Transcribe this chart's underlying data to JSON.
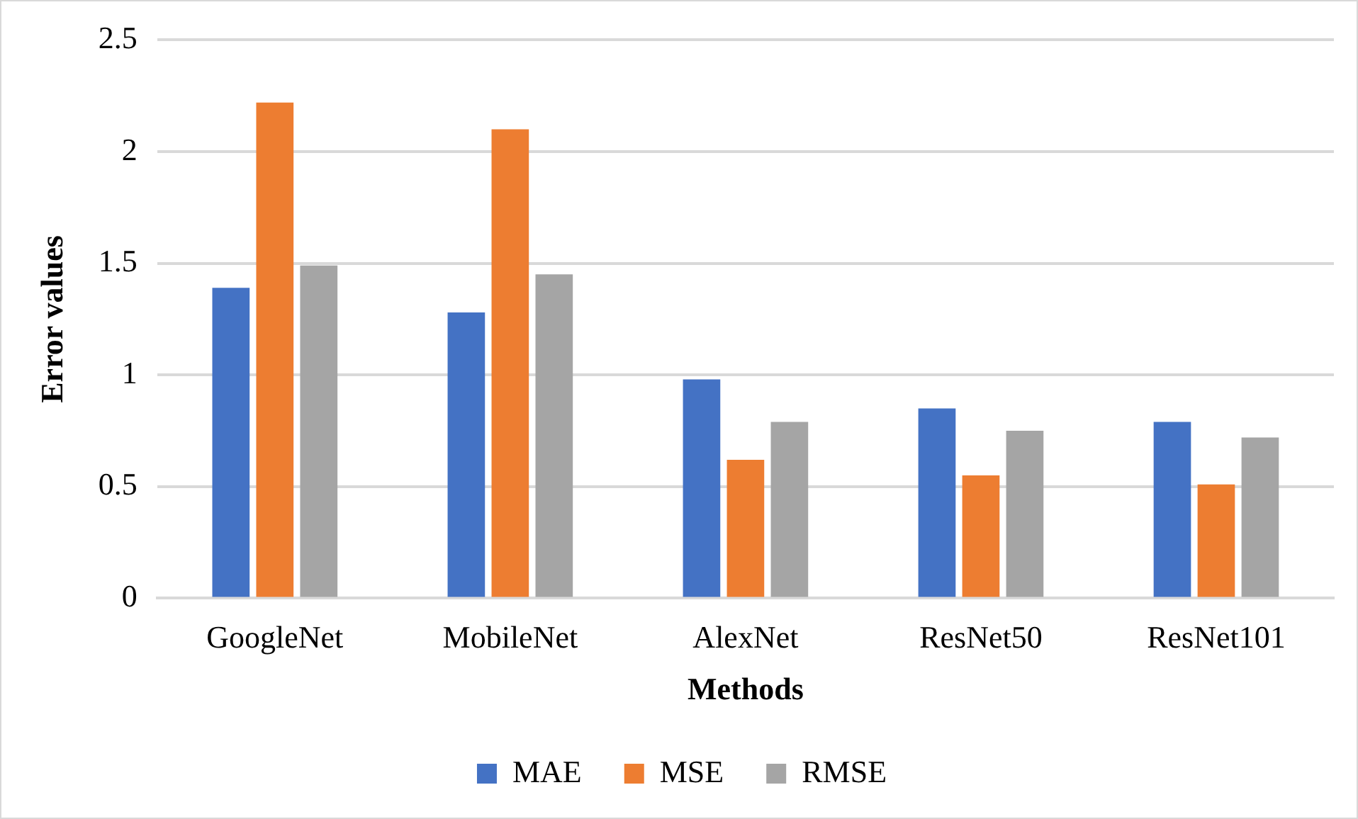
{
  "chart_data": {
    "type": "bar",
    "xlabel": "Methods",
    "ylabel": "Error values",
    "categories": [
      "GoogleNet",
      "MobileNet",
      "AlexNet",
      "ResNet50",
      "ResNet101"
    ],
    "series": [
      {
        "name": "MAE",
        "color": "#4472c4",
        "values": [
          1.39,
          1.28,
          0.98,
          0.85,
          0.79
        ]
      },
      {
        "name": "MSE",
        "color": "#ed7d31",
        "values": [
          2.22,
          2.1,
          0.62,
          0.55,
          0.51
        ]
      },
      {
        "name": "RMSE",
        "color": "#a5a5a5",
        "values": [
          1.49,
          1.45,
          0.79,
          0.75,
          0.72
        ]
      }
    ],
    "ylim": [
      0,
      2.5
    ],
    "yticks": [
      0,
      0.5,
      1,
      1.5,
      2,
      2.5
    ],
    "grid": "y",
    "legend": "bottom"
  }
}
